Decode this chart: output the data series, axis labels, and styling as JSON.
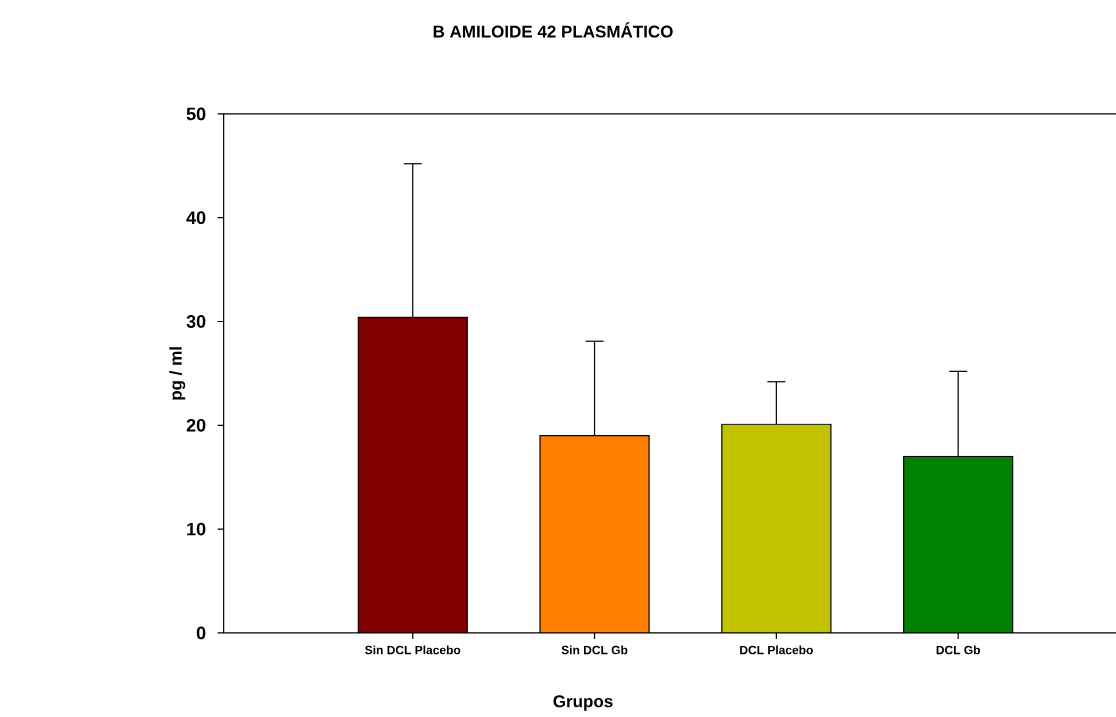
{
  "chart_data": {
    "type": "bar",
    "title": "B AMILOIDE 42 PLASMÁTICO",
    "xlabel": "Grupos",
    "ylabel": "pg / ml",
    "categories": [
      "Sin DCL Placebo",
      "Sin DCL Gb",
      "DCL Placebo",
      "DCL Gb"
    ],
    "values": [
      30.4,
      19.0,
      20.1,
      17.0
    ],
    "errors": [
      14.8,
      9.1,
      4.1,
      8.2
    ],
    "colors": [
      "#800000",
      "#ff8000",
      "#c2c200",
      "#008000"
    ],
    "ylim": [
      0,
      50
    ],
    "yticks": [
      0,
      10,
      20,
      30,
      40,
      50
    ],
    "grid": false
  }
}
